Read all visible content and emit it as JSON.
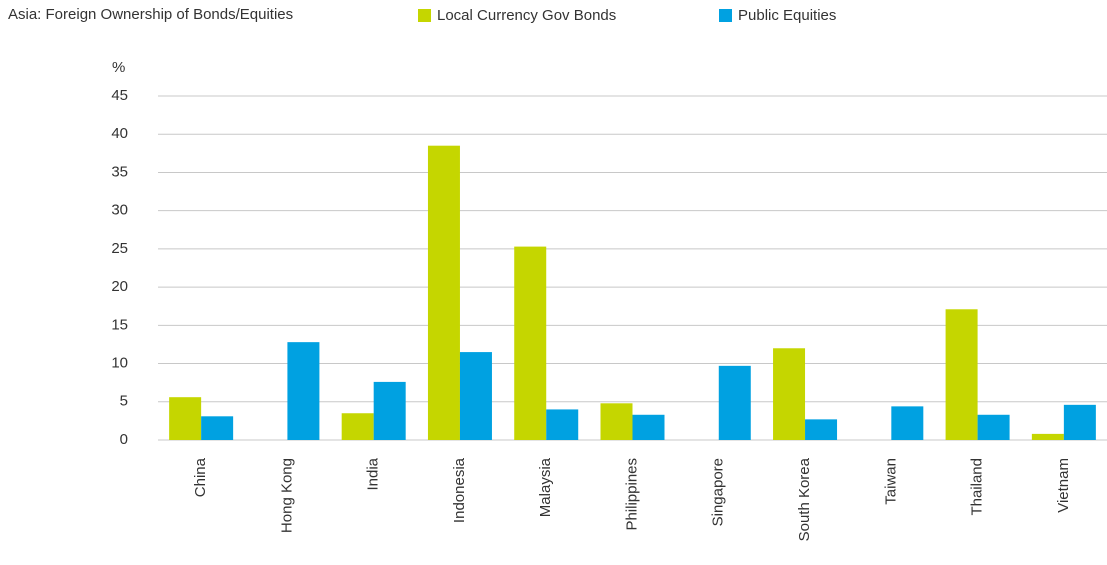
{
  "chart_data": {
    "type": "bar",
    "title": "Asia: Foreign Ownership of Bonds/Equities",
    "y_label": "%",
    "categories": [
      "China",
      "Hong Kong",
      "India",
      "Indonesia",
      "Malaysia",
      "Philippines",
      "Singapore",
      "South Korea",
      "Taiwan",
      "Thailand",
      "Vietnam"
    ],
    "series": [
      {
        "name": "Local Currency Gov Bonds",
        "color": "#c5d600",
        "values": [
          5.6,
          null,
          3.5,
          38.5,
          25.3,
          4.8,
          null,
          12.0,
          null,
          17.1,
          0.8
        ]
      },
      {
        "name": "Public Equities",
        "color": "#00a1e1",
        "values": [
          3.1,
          12.8,
          7.6,
          11.5,
          4.0,
          3.3,
          9.7,
          2.7,
          4.4,
          3.3,
          4.6
        ]
      }
    ],
    "ylim": [
      0,
      45
    ],
    "yticks": [
      0,
      5,
      10,
      15,
      20,
      25,
      30,
      35,
      40,
      45
    ],
    "grid": true
  }
}
